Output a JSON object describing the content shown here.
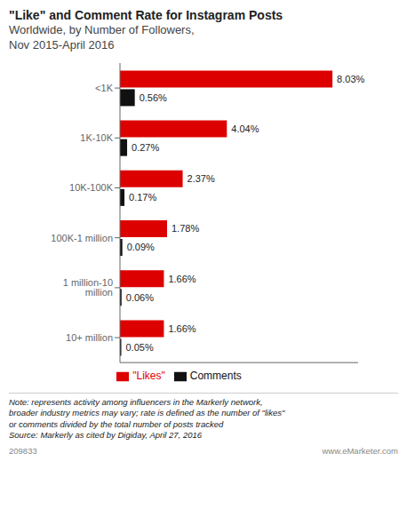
{
  "chart_data": {
    "type": "bar",
    "orientation": "horizontal",
    "title": "\"Like\" and Comment Rate for Instagram Posts",
    "subtitle": "Worldwide, by Number of Followers,\nNov 2015-April 2016",
    "categories": [
      "<1K",
      "1K-10K",
      "10K-100K",
      "100K-1 million",
      "1 million-10 million",
      "10+ million"
    ],
    "series": [
      {
        "name": "\"Likes\"",
        "color": "#dd0000",
        "values": [
          8.03,
          4.04,
          2.37,
          1.78,
          1.66,
          1.66
        ],
        "value_labels": [
          "8.03%",
          "4.04%",
          "2.37%",
          "1.78%",
          "1.66%",
          "1.66%"
        ]
      },
      {
        "name": "Comments",
        "color": "#111111",
        "values": [
          0.56,
          0.27,
          0.17,
          0.09,
          0.06,
          0.05
        ],
        "value_labels": [
          "0.56%",
          "0.27%",
          "0.17%",
          "0.09%",
          "0.06%",
          "0.05%"
        ]
      }
    ],
    "xlim": [
      0,
      9.0
    ],
    "tick_labels": "y",
    "data_labels": true,
    "grid": false,
    "legend": "bottom",
    "annotations": [
      "Note: represents activity among influencers in the Markerly network,\nbroader industry metrics may vary; rate is defined as the number of \"likes\"\nor comments divided by the total number of posts tracked\nSource: Markerly as cited by Digiday, April 27, 2016",
      "209833",
      "www.eMarketer.com"
    ]
  }
}
